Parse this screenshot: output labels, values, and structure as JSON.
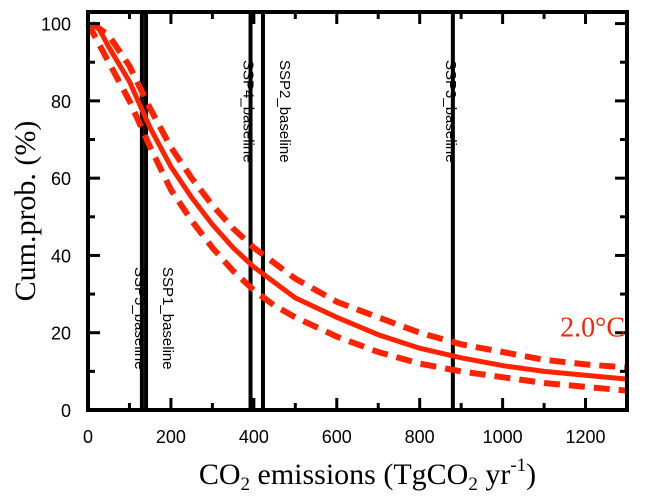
{
  "chart_data": {
    "type": "line",
    "title": "",
    "xlabel": {
      "prefix": "CO",
      "sub": "2",
      "middle": " emissions (TgCO",
      "sub2": "2",
      "middle2": " yr",
      "sup": "-1",
      "suffix": ")"
    },
    "ylabel": "Cum.prob. (%)",
    "xlim": [
      0,
      1300
    ],
    "ylim": [
      0,
      103
    ],
    "xticks": [
      0,
      200,
      400,
      600,
      800,
      1000,
      1200
    ],
    "yticks": [
      0,
      20,
      40,
      60,
      80,
      100
    ],
    "xtick_labels": [
      "0",
      "200",
      "400",
      "600",
      "800",
      "1000",
      "1200"
    ],
    "ytick_labels": [
      "0",
      "20",
      "40",
      "60",
      "80",
      "100"
    ],
    "grid": false,
    "annotation": {
      "text": "2.0°C",
      "color": "#ff2200"
    },
    "series": [
      {
        "style": "solid",
        "color": "#ff2200",
        "x": [
          0,
          25,
          50,
          100,
          150,
          200,
          250,
          300,
          350,
          400,
          450,
          500,
          600,
          700,
          800,
          900,
          1000,
          1100,
          1200,
          1300
        ],
        "y": [
          100,
          99,
          94,
          85,
          73,
          63,
          55,
          48,
          42,
          37,
          33,
          29,
          24,
          19.5,
          16,
          13.5,
          11.5,
          10,
          9,
          8
        ]
      },
      {
        "style": "dashed",
        "color": "#ff2200",
        "x": [
          10,
          50,
          100,
          150,
          200,
          250,
          300,
          350,
          400,
          450,
          500,
          600,
          700,
          800,
          900,
          1000,
          1100,
          1200,
          1300
        ],
        "y": [
          100,
          97,
          89,
          78,
          68,
          60,
          53,
          47,
          42,
          38,
          34,
          28,
          24,
          20,
          17,
          15,
          13,
          11.8,
          11
        ]
      },
      {
        "style": "dashed",
        "color": "#ff2200",
        "x": [
          0,
          50,
          100,
          150,
          200,
          250,
          300,
          350,
          400,
          450,
          500,
          600,
          700,
          800,
          900,
          1000,
          1100,
          1200,
          1300
        ],
        "y": [
          100,
          90,
          80,
          68,
          57,
          49,
          42,
          36,
          31,
          27,
          24,
          19,
          15,
          12,
          10,
          8.5,
          7,
          6,
          5
        ]
      }
    ],
    "vertical_lines": [
      {
        "x": 130,
        "label": "SSP5_baseline",
        "label_side": "left"
      },
      {
        "x": 140,
        "label": "SSP1_baseline",
        "label_side": "right"
      },
      {
        "x": 392,
        "label": "SSP4_baseline",
        "label_side": "left"
      },
      {
        "x": 422,
        "label": "SSP2_baseline",
        "label_side": "right"
      },
      {
        "x": 880,
        "label": "SSP3_baseline",
        "label_side": "left"
      }
    ]
  }
}
